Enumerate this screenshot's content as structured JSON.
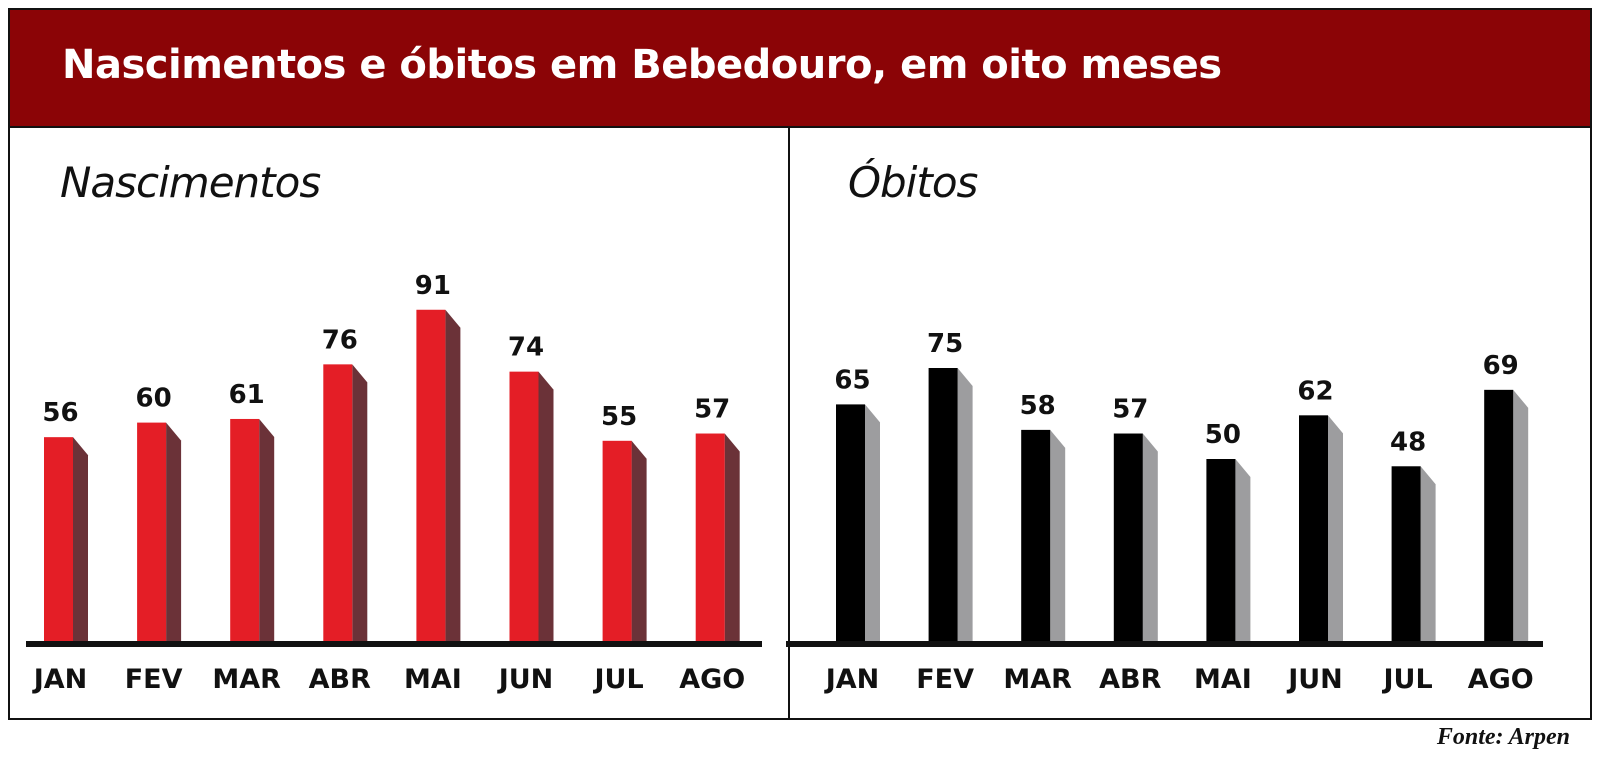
{
  "title": "Nascimentos e óbitos em Bebedouro, em oito meses",
  "source": "Fonte: Arpen",
  "colors": {
    "header_bg": "#8b0406",
    "births_bar": "#e41e26",
    "births_side": "#6b3238",
    "deaths_bar": "#000000",
    "deaths_side": "#9d9d9f"
  },
  "chart_data": [
    {
      "type": "bar",
      "title": "Nascimentos",
      "categories": [
        "JAN",
        "FEV",
        "MAR",
        "ABR",
        "MAI",
        "JUN",
        "JUL",
        "AGO"
      ],
      "values": [
        56,
        60,
        61,
        76,
        91,
        74,
        55,
        57
      ],
      "data_labels": true,
      "grid": false
    },
    {
      "type": "bar",
      "title": "Óbitos",
      "categories": [
        "JAN",
        "FEV",
        "MAR",
        "ABR",
        "MAI",
        "JUN",
        "JUL",
        "AGO"
      ],
      "values": [
        65,
        75,
        58,
        57,
        50,
        62,
        48,
        69
      ],
      "data_labels": true,
      "grid": false
    }
  ]
}
